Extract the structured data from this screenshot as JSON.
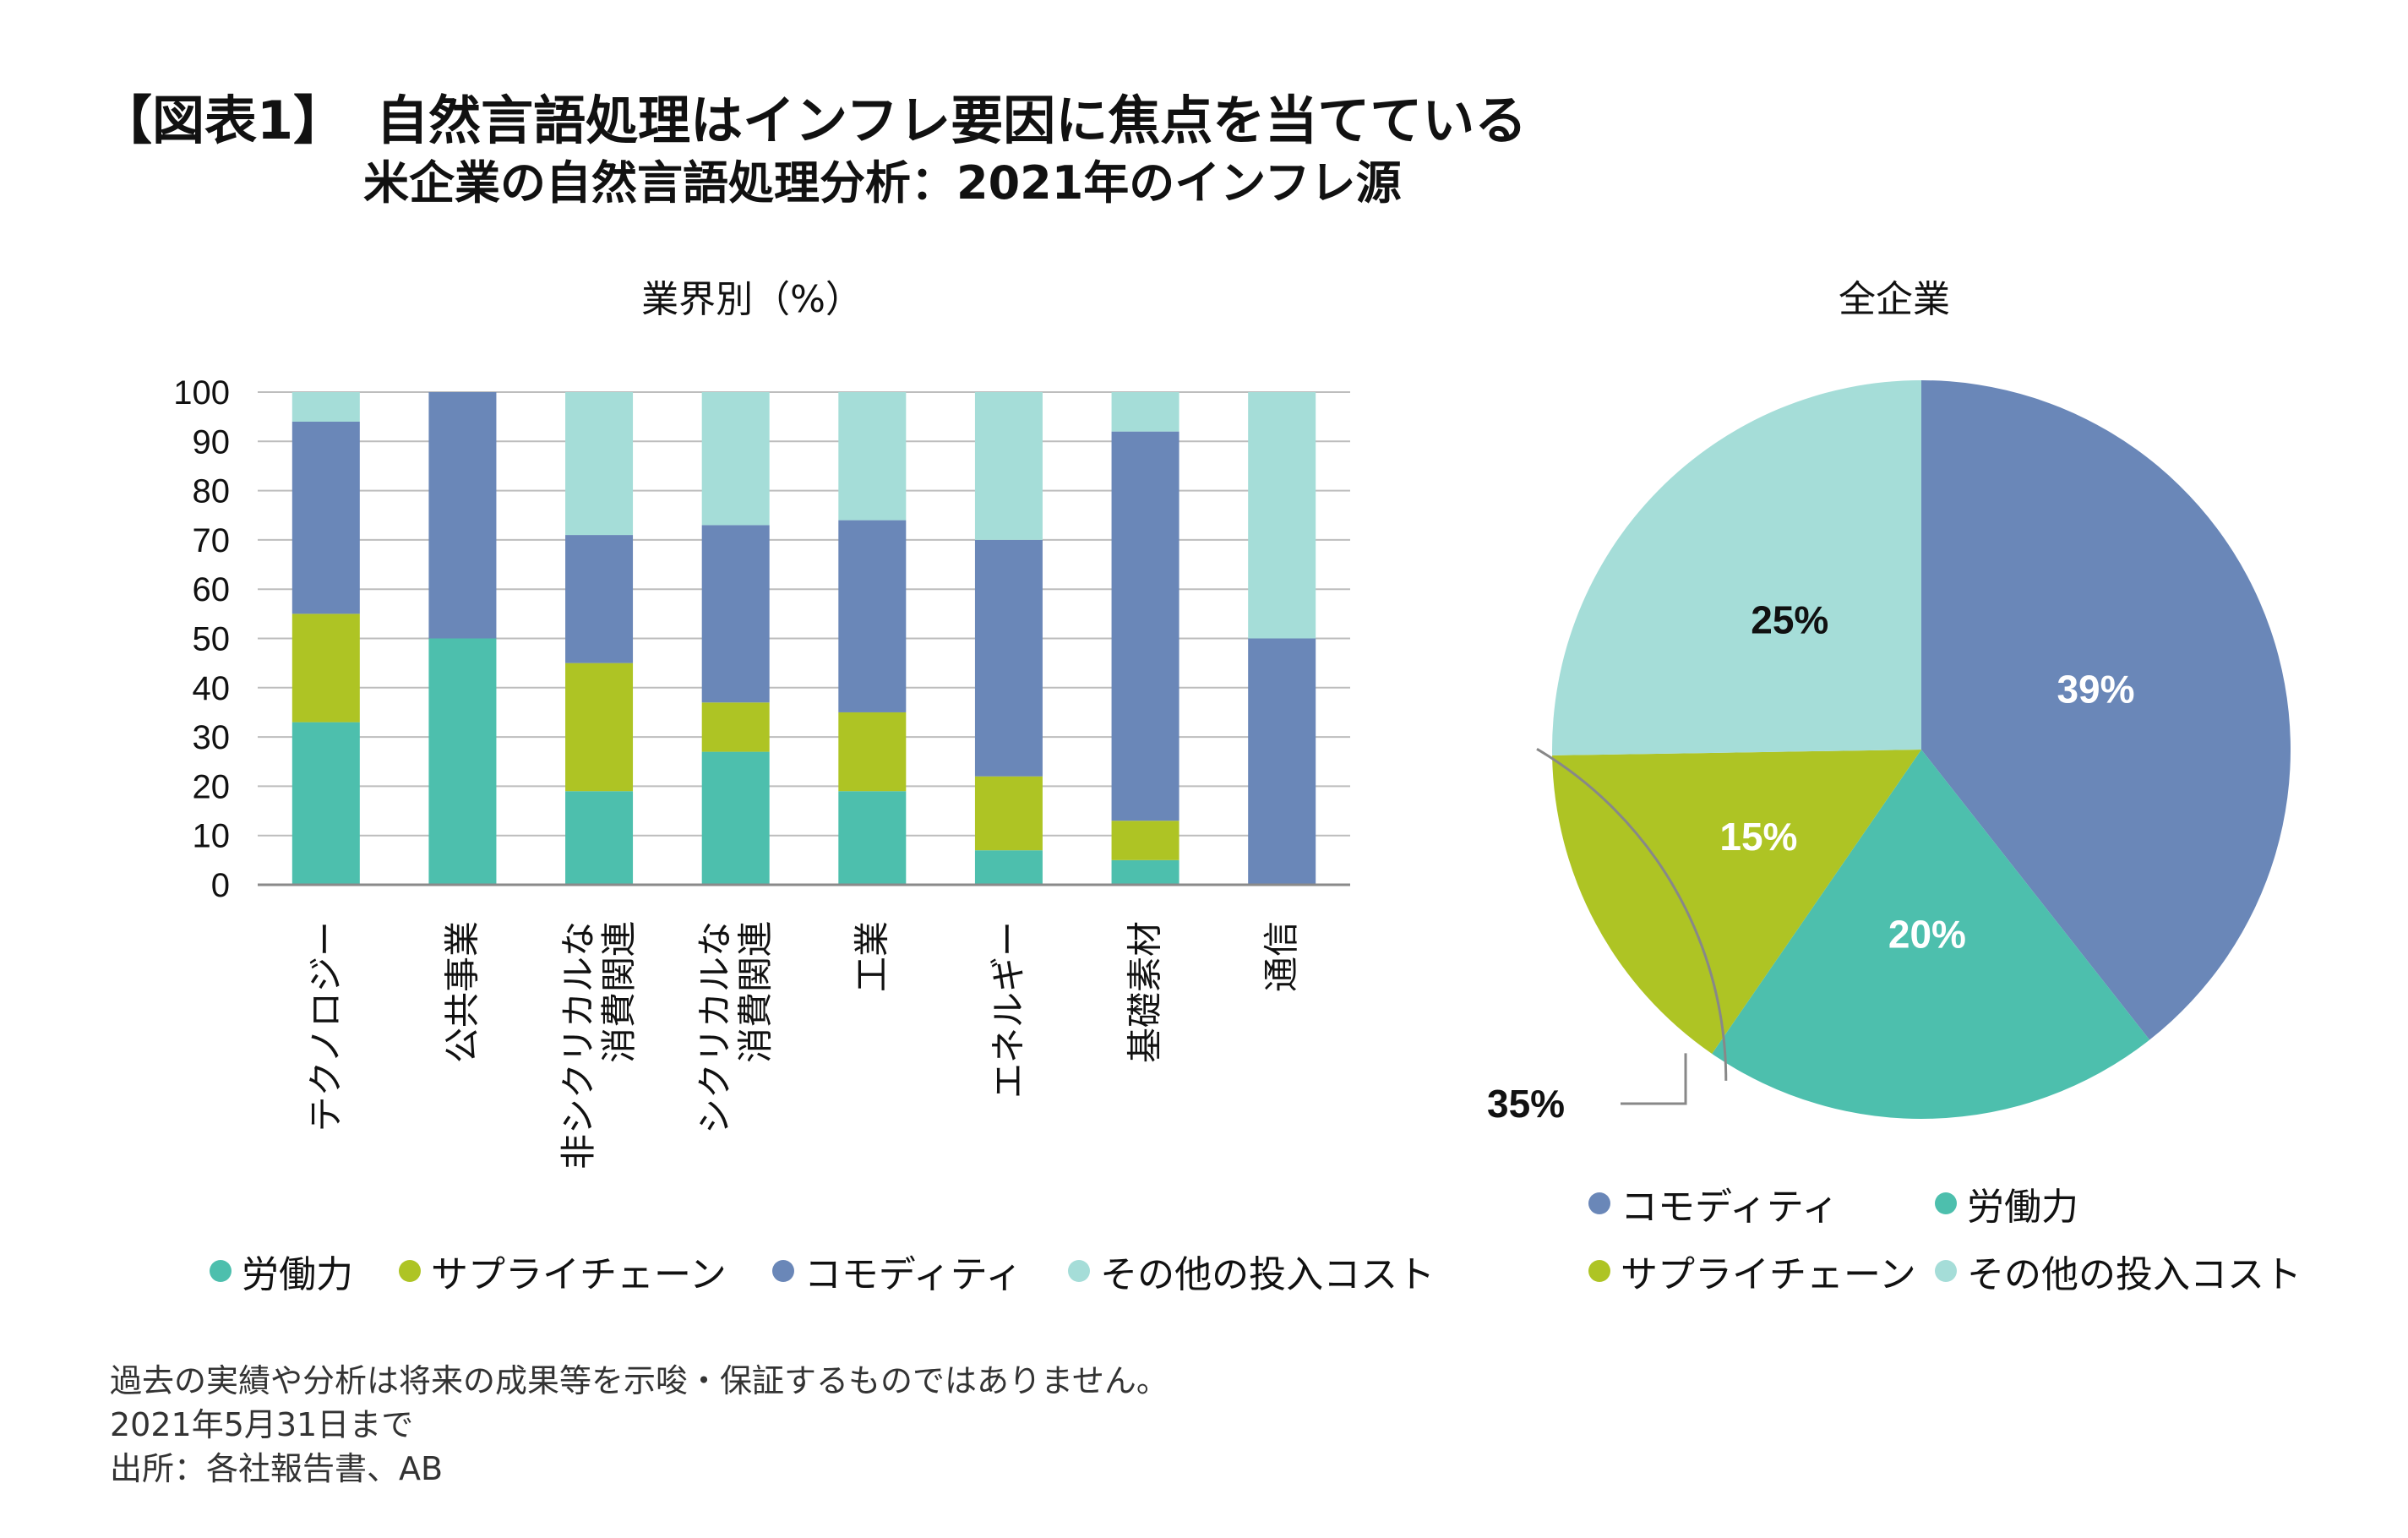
{
  "title": {
    "label": "【図表1】",
    "main": "自然言語処理はインフレ要因に焦点を当てている"
  },
  "subtitle": "米企業の自然言語処理分析：2021年のインフレ源",
  "bar_panel_title": "業界別（%）",
  "pie_panel_title": "全企業",
  "colors": {
    "labor": "#4dbfad",
    "supply": "#aec424",
    "commodity": "#6a87b8",
    "other": "#a5ddd8",
    "grid": "#bdbdbd",
    "axis": "#8a8a8a"
  },
  "chart_data": [
    {
      "type": "bar",
      "stacked": true,
      "title": "業界別（%）",
      "ylim": [
        0,
        100
      ],
      "yticks": [
        0,
        10,
        20,
        30,
        40,
        50,
        60,
        70,
        80,
        90,
        100
      ],
      "categories": [
        [
          "テクノロジー"
        ],
        [
          "公共事業"
        ],
        [
          "非シクリカルな",
          "消費関連"
        ],
        [
          "シクリカルな",
          "消費関連"
        ],
        [
          "工業"
        ],
        [
          "エネルギー"
        ],
        [
          "基礎素材"
        ],
        [
          "通信"
        ]
      ],
      "series": [
        {
          "name": "労働力",
          "key": "labor",
          "values": [
            33,
            50,
            19,
            27,
            19,
            7,
            5,
            0
          ]
        },
        {
          "name": "サプライチェーン",
          "key": "supply",
          "values": [
            22,
            0,
            26,
            10,
            16,
            15,
            8,
            0
          ]
        },
        {
          "name": "コモディティ",
          "key": "commodity",
          "values": [
            39,
            50,
            26,
            36,
            39,
            48,
            79,
            50
          ]
        },
        {
          "name": "その他の投入コスト",
          "key": "other",
          "values": [
            6,
            0,
            29,
            27,
            26,
            30,
            8,
            50
          ]
        }
      ],
      "legend": [
        "労働力",
        "サプライチェーン",
        "コモディティ",
        "その他の投入コスト"
      ]
    },
    {
      "type": "pie",
      "title": "全企業",
      "slices": [
        {
          "name": "コモディティ",
          "key": "commodity",
          "value": 39,
          "label": "39%"
        },
        {
          "name": "労働力",
          "key": "labor",
          "value": 20,
          "label": "20%"
        },
        {
          "name": "サプライチェーン",
          "key": "supply",
          "value": 15,
          "label": "15%"
        },
        {
          "name": "その他の投入コスト",
          "key": "other",
          "value": 25,
          "label": "25%"
        }
      ],
      "bracket_label": "35%",
      "legend": [
        "コモディティ",
        "労働力",
        "サプライチェーン",
        "その他の投入コスト"
      ]
    }
  ],
  "notes": [
    "過去の実績や分析は将来の成果等を示唆・保証するものではありません。",
    "2021年5月31日まで",
    "出所：各社報告書、AB"
  ]
}
